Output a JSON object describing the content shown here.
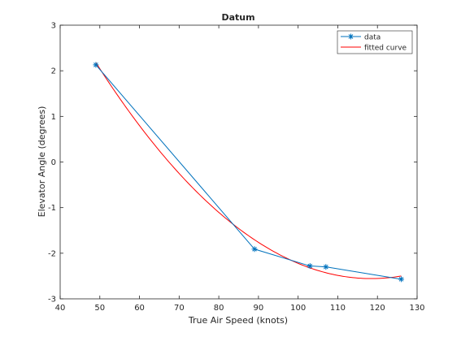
{
  "chart_data": {
    "type": "line",
    "title": "Datum",
    "xlabel": "True Air Speed (knots)",
    "ylabel": "Elevator Angle (degrees)",
    "xlim": [
      40,
      130
    ],
    "ylim": [
      -3,
      3
    ],
    "xticks": [
      40,
      50,
      60,
      70,
      80,
      90,
      100,
      110,
      120,
      130
    ],
    "yticks": [
      -3,
      -2,
      -1,
      0,
      1,
      2,
      3
    ],
    "grid": false,
    "legend_position": "top-right",
    "series": [
      {
        "name": "data",
        "style": "line-with-star-markers",
        "color": "#0072BD",
        "x": [
          49,
          89,
          103,
          107,
          126
        ],
        "y": [
          2.13,
          -1.91,
          -2.28,
          -2.3,
          -2.57
        ]
      },
      {
        "name": "fitted curve",
        "style": "line",
        "color": "#FF0000",
        "fit": "quadratic",
        "coefficients": [
          0.0009823,
          -0.23268,
          11.2229
        ],
        "x_range": [
          49,
          126
        ]
      }
    ]
  }
}
